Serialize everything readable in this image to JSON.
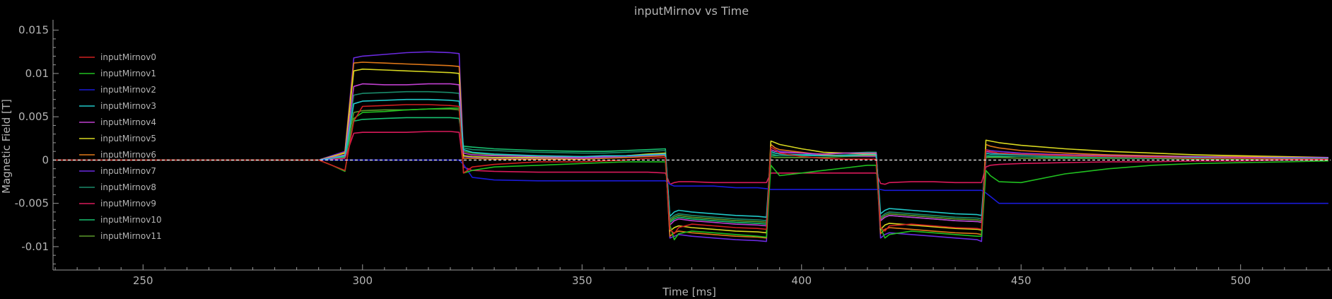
{
  "chart_data": {
    "type": "line",
    "title": "inputMirnov vs Time",
    "xlabel": "Time [ms]",
    "ylabel": "Magnetic Field [T]",
    "xlim": [
      229.5,
      520.5
    ],
    "ylim": [
      -0.0127,
      0.0162
    ],
    "x_ticks": [
      250,
      300,
      350,
      400,
      450,
      500
    ],
    "x_tick_labels": [
      "250",
      "300",
      "350",
      "400",
      "450",
      "500"
    ],
    "y_ticks": [
      0.015,
      0.01,
      0.005,
      0,
      -0.005,
      -0.01
    ],
    "y_tick_labels": [
      "0.015",
      "0.01",
      "0.005",
      "0",
      "-0.005",
      "-0.01"
    ],
    "zero_line": true,
    "legend_position": "top-left",
    "x": [
      230,
      250,
      270,
      285,
      290,
      293,
      296,
      298,
      300,
      305,
      310,
      315,
      320,
      322,
      323,
      325,
      330,
      340,
      350,
      355,
      360,
      365,
      369,
      370,
      371,
      372,
      375,
      380,
      385,
      390,
      392,
      393,
      394,
      395,
      400,
      405,
      410,
      415,
      417,
      418,
      419,
      420,
      425,
      430,
      435,
      440,
      441,
      442,
      443,
      445,
      450,
      460,
      470,
      480,
      490,
      500,
      510,
      520
    ],
    "series": [
      {
        "name": "inputMirnov0",
        "color": "#d02020",
        "values": [
          0,
          0,
          0,
          0,
          0,
          -0.0006,
          -0.0012,
          0.0045,
          0.0062,
          0.0063,
          0.0064,
          0.0064,
          0.0063,
          0.0062,
          -0.0015,
          -0.0008,
          -0.0005,
          -0.0002,
          -0.0002,
          -0.0001,
          0,
          0.0002,
          0.0003,
          -0.008,
          -0.0085,
          -0.0078,
          -0.0074,
          -0.0076,
          -0.0078,
          -0.0079,
          -0.008,
          0.0015,
          0.0012,
          0.0008,
          0.0004,
          0.0002,
          0.0001,
          0.0001,
          0.0001,
          -0.0078,
          -0.0082,
          -0.0076,
          -0.0074,
          -0.0076,
          -0.0078,
          -0.0079,
          -0.008,
          0.0012,
          0.001,
          0.0008,
          0.0007,
          0.0005,
          0.0004,
          0.0003,
          0.0002,
          0.0002,
          0.0001,
          0.0001
        ]
      },
      {
        "name": "inputMirnov1",
        "color": "#20c020",
        "values": [
          0,
          0,
          0,
          0,
          0,
          -0.0006,
          -0.0013,
          0.0048,
          0.0055,
          0.0056,
          0.0058,
          0.0059,
          0.006,
          0.006,
          -0.0015,
          -0.0012,
          -0.0008,
          -0.0006,
          -0.0004,
          -0.0003,
          -0.0002,
          -0.0002,
          -0.0002,
          -0.0075,
          -0.0092,
          -0.0085,
          -0.0082,
          -0.0084,
          -0.0086,
          -0.0088,
          -0.0089,
          -0.0006,
          -0.0012,
          -0.0018,
          -0.0015,
          -0.0012,
          -0.0009,
          -0.0006,
          -0.0006,
          -0.0078,
          -0.009,
          -0.0086,
          -0.0082,
          -0.0084,
          -0.0086,
          -0.0088,
          -0.0088,
          -0.0012,
          -0.0018,
          -0.0025,
          -0.0026,
          -0.0016,
          -0.001,
          -0.0006,
          -0.0004,
          -0.0003,
          -0.0002,
          -0.0001
        ]
      },
      {
        "name": "inputMirnov2",
        "color": "#1a1ad8",
        "values": [
          0,
          0,
          0,
          0,
          0,
          0,
          0,
          0,
          0,
          0,
          0,
          0,
          0,
          0,
          -0.0005,
          -0.002,
          -0.0023,
          -0.0024,
          -0.0024,
          -0.0024,
          -0.0024,
          -0.0024,
          -0.0024,
          -0.0028,
          -0.003,
          -0.003,
          -0.003,
          -0.003,
          -0.0032,
          -0.0032,
          -0.0033,
          -0.0034,
          -0.0034,
          -0.0034,
          -0.0034,
          -0.0034,
          -0.0034,
          -0.0034,
          -0.0034,
          -0.0034,
          -0.0035,
          -0.0035,
          -0.0035,
          -0.0035,
          -0.0035,
          -0.0035,
          -0.0035,
          -0.0038,
          -0.0042,
          -0.005,
          -0.005,
          -0.005,
          -0.005,
          -0.005,
          -0.005,
          -0.005,
          -0.005,
          -0.005
        ]
      },
      {
        "name": "inputMirnov3",
        "color": "#20c8c8",
        "values": [
          0,
          0,
          0,
          0,
          0,
          0.0002,
          0.0005,
          0.0065,
          0.0068,
          0.0069,
          0.007,
          0.007,
          0.0069,
          0.0068,
          0.0012,
          0.0009,
          0.0007,
          0.0005,
          0.0004,
          0.0005,
          0.0005,
          0.0006,
          0.0007,
          -0.0065,
          -0.006,
          -0.0058,
          -0.006,
          -0.0062,
          -0.0064,
          -0.0065,
          -0.0066,
          0.001,
          0.0008,
          0.0007,
          0.0006,
          0.0005,
          0.0005,
          0.0006,
          0.0006,
          -0.0062,
          -0.0058,
          -0.0056,
          -0.0058,
          -0.006,
          -0.0062,
          -0.0063,
          -0.0064,
          0.0008,
          0.0007,
          0.0007,
          0.0006,
          0.0005,
          0.0004,
          0.0003,
          0.0003,
          0.0002,
          0.0002,
          0.0002
        ]
      },
      {
        "name": "inputMirnov4",
        "color": "#c040d0",
        "values": [
          0,
          0,
          0,
          0,
          0,
          0.0003,
          0.0006,
          0.0085,
          0.0088,
          0.0087,
          0.0087,
          0.0088,
          0.0088,
          0.0087,
          0.0008,
          0.0006,
          0.0005,
          0.0004,
          0.0003,
          0.0004,
          0.0005,
          0.0006,
          0.0007,
          -0.0075,
          -0.007,
          -0.0068,
          -0.007,
          -0.0072,
          -0.0074,
          -0.0075,
          -0.0076,
          0.0012,
          0.001,
          0.0009,
          0.0008,
          0.0007,
          0.0008,
          0.0008,
          0.0008,
          -0.007,
          -0.0066,
          -0.0064,
          -0.0066,
          -0.0068,
          -0.007,
          -0.0071,
          -0.0072,
          0.001,
          0.0009,
          0.0008,
          0.0007,
          0.0006,
          0.0005,
          0.0004,
          0.0004,
          0.0003,
          0.0003,
          0.0003
        ]
      },
      {
        "name": "inputMirnov5",
        "color": "#d8d820",
        "values": [
          0,
          0,
          0,
          0,
          0,
          0.0004,
          0.0008,
          0.0103,
          0.0105,
          0.0104,
          0.0103,
          0.0102,
          0.0101,
          0.01,
          0.0005,
          0.0004,
          0.0003,
          0.0003,
          0.0003,
          0.0004,
          0.0005,
          0.0007,
          0.0008,
          -0.0082,
          -0.0078,
          -0.0076,
          -0.0078,
          -0.008,
          -0.0082,
          -0.0083,
          -0.0084,
          0.0022,
          0.002,
          0.0018,
          0.0013,
          0.0009,
          0.0008,
          0.0007,
          0.0007,
          -0.008,
          -0.0075,
          -0.0073,
          -0.0075,
          -0.0077,
          -0.0079,
          -0.008,
          -0.0081,
          0.0023,
          0.0022,
          0.002,
          0.0017,
          0.0013,
          0.001,
          0.0008,
          0.0006,
          0.0005,
          0.0004,
          0.0003
        ]
      },
      {
        "name": "inputMirnov6",
        "color": "#e07818",
        "values": [
          0,
          0,
          0,
          0,
          0,
          0.0004,
          0.0009,
          0.0112,
          0.0113,
          0.0112,
          0.0111,
          0.011,
          0.0109,
          0.0108,
          0.0002,
          0.0002,
          0.0001,
          0.0001,
          0.0001,
          0.0002,
          0.0003,
          0.0004,
          0.0005,
          -0.0088,
          -0.0084,
          -0.0082,
          -0.0084,
          -0.0086,
          -0.0088,
          -0.0089,
          -0.009,
          0.0018,
          0.0014,
          0.0012,
          0.0009,
          0.0006,
          0.0005,
          0.0005,
          0.0005,
          -0.0085,
          -0.008,
          -0.0078,
          -0.008,
          -0.0082,
          -0.0084,
          -0.0085,
          -0.0086,
          0.0018,
          0.0016,
          0.0014,
          0.0011,
          0.0008,
          0.0006,
          0.0005,
          0.0004,
          0.0004,
          0.0003,
          0.0003
        ]
      },
      {
        "name": "inputMirnov7",
        "color": "#6a2ae0",
        "values": [
          0,
          0,
          0,
          0,
          0,
          0.0005,
          0.001,
          0.0118,
          0.012,
          0.0122,
          0.0124,
          0.0125,
          0.0124,
          0.0123,
          0.0004,
          0.0003,
          0.0002,
          0.0002,
          0.0002,
          0.0003,
          0.0004,
          0.0005,
          0.0006,
          -0.009,
          -0.0088,
          -0.0086,
          -0.0088,
          -0.009,
          -0.0092,
          -0.0093,
          -0.0094,
          0.0015,
          0.0012,
          0.001,
          0.0008,
          0.0006,
          0.0005,
          0.0004,
          0.0004,
          -0.009,
          -0.0086,
          -0.0084,
          -0.0086,
          -0.0088,
          -0.009,
          -0.0092,
          -0.0094,
          0.0012,
          0.0011,
          0.001,
          0.0008,
          0.0006,
          0.0005,
          0.0004,
          0.0003,
          0.0003,
          0.0002,
          0.0002
        ]
      },
      {
        "name": "inputMirnov8",
        "color": "#1a8a6a",
        "values": [
          0,
          0,
          0,
          0,
          0,
          0.0003,
          0.0006,
          0.0075,
          0.0077,
          0.0078,
          0.0079,
          0.0079,
          0.0078,
          0.0077,
          0.0014,
          0.0012,
          0.0011,
          0.0009,
          0.0008,
          0.0008,
          0.0009,
          0.001,
          0.0011,
          -0.0068,
          -0.0064,
          -0.0062,
          -0.0064,
          -0.0066,
          -0.0068,
          -0.0069,
          -0.007,
          0.0008,
          0.0006,
          0.0005,
          0.0005,
          0.0005,
          0.0006,
          0.0007,
          0.0007,
          -0.0066,
          -0.0062,
          -0.006,
          -0.0062,
          -0.0064,
          -0.0066,
          -0.0067,
          -0.0068,
          0.0006,
          0.0005,
          0.0005,
          0.0004,
          0.0004,
          0.0003,
          0.0003,
          0.0002,
          0.0002,
          0.0002,
          0.0002
        ]
      },
      {
        "name": "inputMirnov9",
        "color": "#d81a5a",
        "values": [
          0,
          0,
          0,
          0,
          0,
          0.0001,
          0.0002,
          0.0031,
          0.0032,
          0.0032,
          0.0032,
          0.0033,
          0.0033,
          0.0032,
          -0.0008,
          -0.0012,
          -0.0013,
          -0.0014,
          -0.0014,
          -0.0014,
          -0.0014,
          -0.0014,
          -0.0015,
          -0.0028,
          -0.0026,
          -0.0025,
          -0.0025,
          -0.0026,
          -0.0026,
          -0.0026,
          -0.0026,
          -0.0015,
          -0.0015,
          -0.0015,
          -0.0015,
          -0.0015,
          -0.0015,
          -0.0015,
          -0.0015,
          -0.0027,
          -0.0028,
          -0.0026,
          -0.0025,
          -0.0025,
          -0.0026,
          -0.0026,
          -0.0026,
          -0.0008,
          -0.0006,
          -0.0005,
          -0.0004,
          -0.0003,
          -0.0002,
          -0.0002,
          -0.0001,
          -0.0001,
          0,
          0
        ]
      },
      {
        "name": "inputMirnov10",
        "color": "#18c070",
        "values": [
          0,
          0,
          0,
          0,
          0,
          0.0001,
          0.0003,
          0.0045,
          0.0047,
          0.0048,
          0.0049,
          0.0049,
          0.0049,
          0.0048,
          0.0016,
          0.0015,
          0.0013,
          0.0011,
          0.001,
          0.001,
          0.0011,
          0.0012,
          0.0013,
          -0.0072,
          -0.0068,
          -0.0066,
          -0.0068,
          -0.007,
          -0.0072,
          -0.0073,
          -0.0074,
          0.0006,
          0.0005,
          0.0005,
          0.0006,
          0.0007,
          0.0008,
          0.0009,
          0.0009,
          -0.007,
          -0.0066,
          -0.0064,
          -0.0066,
          -0.0068,
          -0.007,
          -0.0071,
          -0.0072,
          0.0004,
          0.0004,
          0.0004,
          0.0004,
          0.0003,
          0.0003,
          0.0002,
          0.0002,
          0.0002,
          0.0001,
          0.0001
        ]
      },
      {
        "name": "inputMirnov11",
        "color": "#5a9a2a",
        "values": [
          0,
          0,
          0,
          0,
          0,
          0.0002,
          0.0004,
          0.0055,
          0.0057,
          0.0058,
          0.0058,
          0.0059,
          0.0059,
          0.0058,
          0.001,
          0.0008,
          0.0006,
          0.0005,
          0.0004,
          0.0004,
          0.0005,
          0.0006,
          0.0007,
          -0.007,
          -0.0066,
          -0.0064,
          -0.0066,
          -0.0068,
          -0.007,
          -0.0071,
          -0.0072,
          0.0004,
          0.0003,
          0.0003,
          0.0003,
          0.0003,
          0.0004,
          0.0004,
          0.0004,
          -0.0068,
          -0.0064,
          -0.0062,
          -0.0064,
          -0.0066,
          -0.0068,
          -0.0069,
          -0.007,
          0.0003,
          0.0003,
          0.0003,
          0.0002,
          0.0002,
          0.0002,
          0.0002,
          0.0001,
          0.0001,
          0.0001,
          0.0001
        ]
      }
    ]
  }
}
